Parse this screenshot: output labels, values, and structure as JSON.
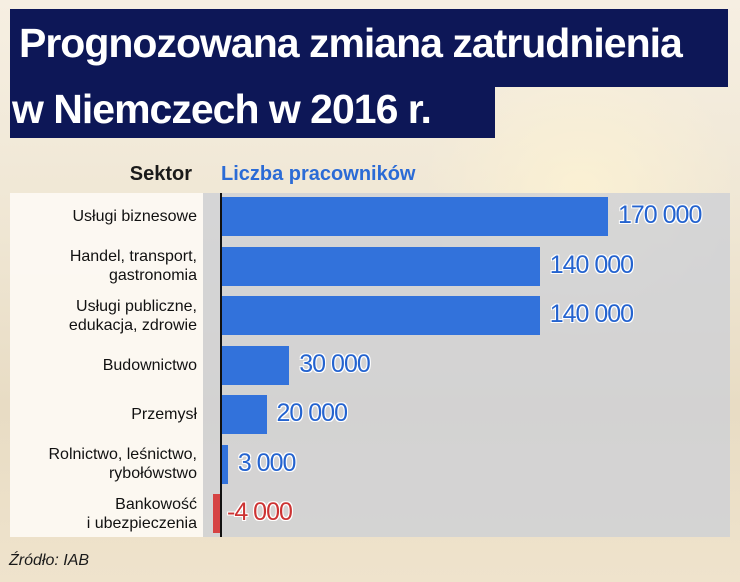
{
  "title": {
    "line1": "Prognozowana zmiana zatrudnienia",
    "line2": "w Niemczech w 2016 r."
  },
  "headers": {
    "sector": "Sektor",
    "value": "Liczba pracowników"
  },
  "rows": [
    {
      "label_lines": [
        "Usługi biznesowe"
      ],
      "value": 170000,
      "display": "170 000"
    },
    {
      "label_lines": [
        "Handel, transport,",
        "gastronomia"
      ],
      "value": 140000,
      "display": "140 000"
    },
    {
      "label_lines": [
        "Usługi publiczne,",
        "edukacja, zdrowie"
      ],
      "value": 140000,
      "display": "140 000"
    },
    {
      "label_lines": [
        "Budownictwo"
      ],
      "value": 30000,
      "display": "30 000"
    },
    {
      "label_lines": [
        "Przemysł"
      ],
      "value": 20000,
      "display": "20 000"
    },
    {
      "label_lines": [
        "Rolnictwo, leśnictwo,",
        "rybołówstwo"
      ],
      "value": 3000,
      "display": "3 000"
    },
    {
      "label_lines": [
        "Bankowość",
        "i ubezpieczenia"
      ],
      "value": -4000,
      "display": "-4 000"
    }
  ],
  "source": "Źródło: IAB",
  "colors": {
    "title_bg": "#0d1757",
    "positive": "#3272db",
    "negative": "#d64343",
    "header_accent": "#2b6bd6"
  },
  "chart_data": {
    "type": "bar",
    "orientation": "horizontal",
    "title": "Prognozowana zmiana zatrudnienia w Niemczech w 2016 r.",
    "xlabel": "Liczba pracowników",
    "ylabel": "Sektor",
    "categories": [
      "Usługi biznesowe",
      "Handel, transport, gastronomia",
      "Usługi publiczne, edukacja, zdrowie",
      "Budownictwo",
      "Przemysł",
      "Rolnictwo, leśnictwo, rybołówstwo",
      "Bankowość i ubezpieczenia"
    ],
    "values": [
      170000,
      140000,
      140000,
      30000,
      20000,
      3000,
      -4000
    ],
    "data_labels": [
      "170 000",
      "140 000",
      "140 000",
      "30 000",
      "20 000",
      "3 000",
      "-4 000"
    ],
    "grid": false,
    "legend": null,
    "source": "Źródło: IAB"
  }
}
